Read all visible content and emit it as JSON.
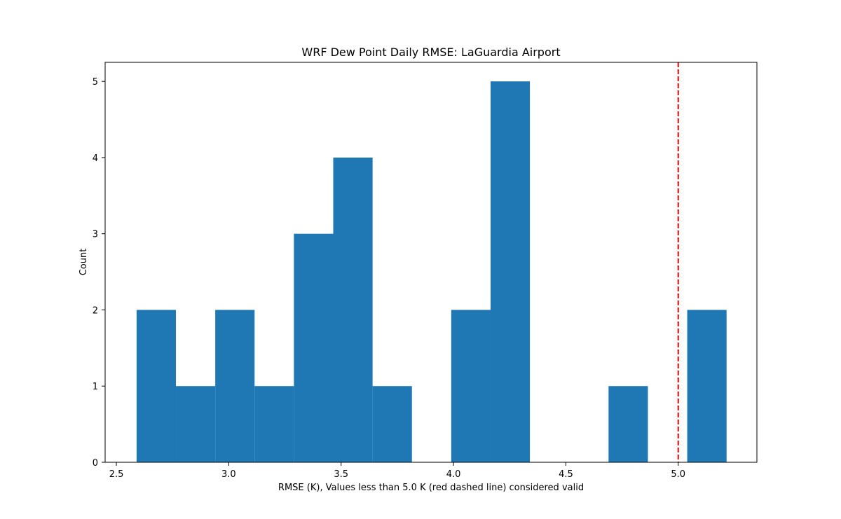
{
  "chart_data": {
    "type": "bar",
    "title": "WRF Dew Point Daily RMSE: LaGuardia Airport",
    "xlabel": "RMSE (K), Values less than 5.0 K (red dashed line) considered valid",
    "ylabel": "Count",
    "xlim": [
      2.45,
      5.35
    ],
    "ylim": [
      0,
      5.25
    ],
    "x_ticks": [
      2.5,
      3.0,
      3.5,
      4.0,
      4.5,
      5.0
    ],
    "x_tick_labels": [
      "2.5",
      "3.0",
      "3.5",
      "4.0",
      "4.5",
      "5.0"
    ],
    "y_ticks": [
      0,
      1,
      2,
      3,
      4,
      5
    ],
    "y_tick_labels": [
      "0",
      "1",
      "2",
      "3",
      "4",
      "5"
    ],
    "bin_edges": [
      2.59,
      2.765,
      2.94,
      3.115,
      3.29,
      3.465,
      3.64,
      3.815,
      3.99,
      4.165,
      4.34,
      4.515,
      4.69,
      4.865,
      5.04,
      5.215
    ],
    "counts": [
      2,
      1,
      2,
      1,
      3,
      4,
      1,
      0,
      2,
      5,
      0,
      0,
      1,
      0,
      2
    ],
    "threshold": 5.0,
    "grid": false,
    "colors": {
      "bar": "#1f77b4",
      "threshold": "#ff0000",
      "axes": "#000000"
    }
  }
}
